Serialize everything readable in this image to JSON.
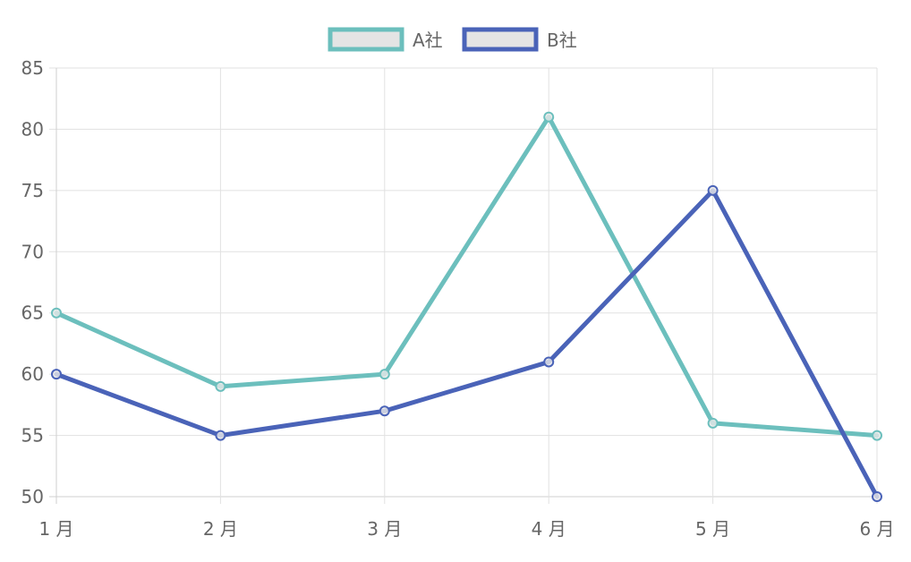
{
  "chart_data": {
    "type": "line",
    "categories": [
      "1 月",
      "2 月",
      "3 月",
      "4 月",
      "5 月",
      "6 月"
    ],
    "series": [
      {
        "name": "A社",
        "values": [
          65,
          59,
          60,
          81,
          56,
          55
        ],
        "color": "#6cbfbd"
      },
      {
        "name": "B社",
        "values": [
          60,
          55,
          57,
          61,
          75,
          50
        ],
        "color": "#4a63b8"
      }
    ],
    "ylim": [
      50,
      85
    ],
    "yticks": [
      50,
      55,
      60,
      65,
      70,
      75,
      80,
      85
    ],
    "grid": true,
    "legend_position": "top-center",
    "legend_fill": "#e4e4e4",
    "grid_color": "#e1e1e1",
    "text_color": "#666666"
  }
}
